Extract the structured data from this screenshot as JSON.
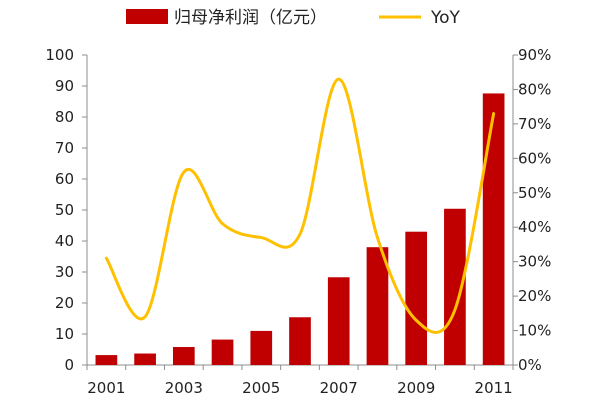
{
  "chart_data": {
    "type": "bar+line",
    "x": [
      2001,
      2002,
      2003,
      2004,
      2005,
      2006,
      2007,
      2008,
      2009,
      2010,
      2011
    ],
    "x_tick_labels": [
      "2001",
      "2003",
      "2005",
      "2007",
      "2009",
      "2011"
    ],
    "series": [
      {
        "name": "归母净利润（亿元）",
        "type": "bar",
        "axis": "left",
        "color": "#c00000",
        "values": [
          3.2,
          3.7,
          5.8,
          8.2,
          11.0,
          15.4,
          28.3,
          38.0,
          43.0,
          50.4,
          87.6
        ]
      },
      {
        "name": "YoY",
        "type": "line",
        "axis": "right",
        "color": "#ffc000",
        "values": [
          31,
          14,
          56,
          41,
          37,
          38,
          83,
          37,
          13,
          16,
          73
        ]
      }
    ],
    "y_left": {
      "min": 0,
      "max": 100,
      "step": 10,
      "tick_labels": [
        "0",
        "10",
        "20",
        "30",
        "40",
        "50",
        "60",
        "70",
        "80",
        "90",
        "100"
      ]
    },
    "y_right": {
      "min": 0,
      "max": 90,
      "step": 10,
      "tick_labels": [
        "0%",
        "10%",
        "20%",
        "30%",
        "40%",
        "50%",
        "60%",
        "70%",
        "80%",
        "90%"
      ]
    },
    "legend_position": "top",
    "grid": false,
    "title": "",
    "xlabel": "",
    "ylabel": ""
  }
}
